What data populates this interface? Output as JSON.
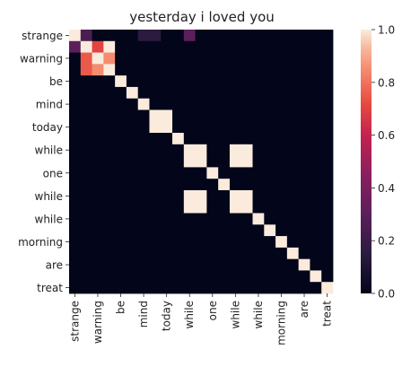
{
  "chart_data": {
    "type": "heatmap",
    "title": "yesterday i loved you",
    "row_tick_labels": [
      "strange",
      "warning",
      "be",
      "mind",
      "today",
      "while",
      "one",
      "while",
      "while",
      "morning",
      "are",
      "treat"
    ],
    "col_tick_labels": [
      "strange",
      "warning",
      "be",
      "mind",
      "today",
      "while",
      "one",
      "while",
      "while",
      "morning",
      "are",
      "treat"
    ],
    "colorbar": {
      "vmin": 0.0,
      "vmax": 1.0,
      "ticks": [
        "0.0",
        "0.2",
        "0.4",
        "0.6",
        "0.8",
        "1.0"
      ]
    },
    "colormap": "rocket",
    "matrix": [
      [
        1,
        0.25,
        0,
        0,
        0,
        0,
        0.15,
        0.15,
        0,
        0,
        0.3,
        0,
        0,
        0,
        0,
        0,
        0,
        0,
        0,
        0,
        0,
        0,
        0
      ],
      [
        0.3,
        1,
        0.7,
        1,
        0,
        0,
        0,
        0,
        0,
        0,
        0,
        0,
        0,
        0,
        0,
        0,
        0,
        0,
        0,
        0,
        0,
        0,
        0
      ],
      [
        0,
        0.75,
        1,
        0.85,
        0,
        0,
        0,
        0,
        0,
        0,
        0,
        0,
        0,
        0,
        0,
        0,
        0,
        0,
        0,
        0,
        0,
        0,
        0
      ],
      [
        0,
        0.75,
        0.85,
        1,
        0,
        0,
        0,
        0,
        0,
        0,
        0,
        0,
        0,
        0,
        0,
        0,
        0,
        0,
        0,
        0,
        0,
        0,
        0
      ],
      [
        0,
        0,
        0,
        0,
        1,
        0,
        0,
        0,
        0,
        0,
        0,
        0,
        0,
        0,
        0,
        0,
        0,
        0,
        0,
        0,
        0,
        0,
        0
      ],
      [
        0,
        0,
        0,
        0,
        0,
        1,
        0,
        0,
        0,
        0,
        0,
        0,
        0,
        0,
        0,
        0,
        0,
        0,
        0,
        0,
        0,
        0,
        0
      ],
      [
        0,
        0,
        0,
        0,
        0,
        0,
        1,
        0,
        0,
        0,
        0,
        0,
        0,
        0,
        0,
        0,
        0,
        0,
        0,
        0,
        0,
        0,
        0
      ],
      [
        0,
        0,
        0,
        0,
        0,
        0,
        0,
        1,
        1,
        0,
        0,
        0,
        0,
        0,
        0,
        0,
        0,
        0,
        0,
        0,
        0,
        0,
        0
      ],
      [
        0,
        0,
        0,
        0,
        0,
        0,
        0,
        1,
        1,
        0,
        0,
        0,
        0,
        0,
        0,
        0,
        0,
        0,
        0,
        0,
        0,
        0,
        0
      ],
      [
        0,
        0,
        0,
        0,
        0,
        0,
        0,
        0,
        0,
        1,
        0,
        0,
        0,
        0,
        0,
        0,
        0,
        0,
        0,
        0,
        0,
        0,
        0
      ],
      [
        0,
        0,
        0,
        0,
        0,
        0,
        0,
        0,
        0,
        0,
        1,
        1,
        0,
        0,
        1,
        1,
        0,
        0,
        0,
        0,
        0,
        0,
        0
      ],
      [
        0,
        0,
        0,
        0,
        0,
        0,
        0,
        0,
        0,
        0,
        1,
        1,
        0,
        0,
        1,
        1,
        0,
        0,
        0,
        0,
        0,
        0,
        0
      ],
      [
        0,
        0,
        0,
        0,
        0,
        0,
        0,
        0,
        0,
        0,
        0,
        0,
        1,
        0,
        0,
        0,
        0,
        0,
        0,
        0,
        0,
        0,
        0
      ],
      [
        0,
        0,
        0,
        0,
        0,
        0,
        0,
        0,
        0,
        0,
        0,
        0,
        0,
        1,
        0,
        0,
        0,
        0,
        0,
        0,
        0,
        0,
        0
      ],
      [
        0,
        0,
        0,
        0,
        0,
        0,
        0,
        0,
        0,
        0,
        1,
        1,
        0,
        0,
        1,
        1,
        0,
        0,
        0,
        0,
        0,
        0,
        0
      ],
      [
        0,
        0,
        0,
        0,
        0,
        0,
        0,
        0,
        0,
        0,
        1,
        1,
        0,
        0,
        1,
        1,
        0,
        0,
        0,
        0,
        0,
        0,
        0
      ],
      [
        0,
        0,
        0,
        0,
        0,
        0,
        0,
        0,
        0,
        0,
        0,
        0,
        0,
        0,
        0,
        0,
        1,
        0,
        0,
        0,
        0,
        0,
        0
      ],
      [
        0,
        0,
        0,
        0,
        0,
        0,
        0,
        0,
        0,
        0,
        0,
        0,
        0,
        0,
        0,
        0,
        0,
        1,
        0,
        0,
        0,
        0,
        0
      ],
      [
        0,
        0,
        0,
        0,
        0,
        0,
        0,
        0,
        0,
        0,
        0,
        0,
        0,
        0,
        0,
        0,
        0,
        0,
        1,
        0,
        0,
        0,
        0
      ],
      [
        0,
        0,
        0,
        0,
        0,
        0,
        0,
        0,
        0,
        0,
        0,
        0,
        0,
        0,
        0,
        0,
        0,
        0,
        0,
        1,
        0,
        0,
        0
      ],
      [
        0,
        0,
        0,
        0,
        0,
        0,
        0,
        0,
        0,
        0,
        0,
        0,
        0,
        0,
        0,
        0,
        0,
        0,
        0,
        0,
        1,
        0,
        0
      ],
      [
        0,
        0,
        0,
        0,
        0,
        0,
        0,
        0,
        0,
        0,
        0,
        0,
        0,
        0,
        0,
        0,
        0,
        0,
        0,
        0,
        0,
        1,
        0
      ],
      [
        0,
        0,
        0,
        0,
        0,
        0,
        0,
        0,
        0,
        0,
        0,
        0,
        0,
        0,
        0,
        0,
        0,
        0,
        0,
        0,
        0,
        0,
        1
      ]
    ],
    "grid": false,
    "legend": "colorbar-right"
  }
}
